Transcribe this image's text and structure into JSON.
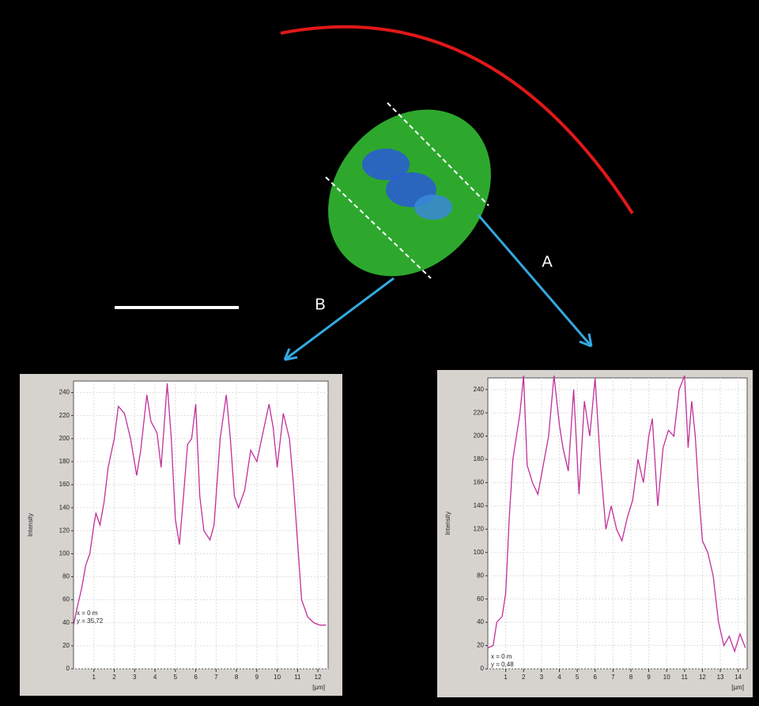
{
  "chart_data": [
    {
      "type": "line",
      "annotation": "B",
      "ylabel": "Intensity",
      "xlabel": "[µm]",
      "readout": [
        "x = 0 m",
        "y = 35,72"
      ],
      "x": [
        0,
        0.2,
        0.4,
        0.6,
        0.8,
        1.0,
        1.1,
        1.3,
        1.5,
        1.7,
        2.0,
        2.2,
        2.5,
        2.8,
        3.1,
        3.3,
        3.6,
        3.8,
        4.1,
        4.3,
        4.6,
        4.8,
        5.0,
        5.2,
        5.4,
        5.6,
        5.8,
        6.0,
        6.2,
        6.4,
        6.7,
        6.9,
        7.2,
        7.5,
        7.7,
        7.9,
        8.1,
        8.4,
        8.7,
        9.0,
        9.3,
        9.6,
        9.8,
        10.0,
        10.3,
        10.6,
        10.8,
        11.0,
        11.2,
        11.5,
        11.8,
        12.1,
        12.4
      ],
      "series": [
        {
          "color": "#c0309a",
          "values": [
            38,
            55,
            70,
            90,
            100,
            125,
            135,
            125,
            145,
            175,
            200,
            228,
            222,
            200,
            168,
            190,
            238,
            215,
            205,
            175,
            248,
            200,
            130,
            108,
            150,
            195,
            200,
            230,
            150,
            120,
            112,
            125,
            200,
            238,
            200,
            150,
            140,
            155,
            190,
            180,
            205,
            230,
            210,
            175,
            222,
            200,
            160,
            110,
            60,
            45,
            40,
            38,
            38
          ]
        }
      ],
      "xlim": [
        0,
        12.5
      ],
      "ylim": [
        0,
        250
      ],
      "xticks": [
        1,
        2,
        3,
        4,
        5,
        6,
        7,
        8,
        9,
        10,
        11,
        12
      ],
      "yticks": [
        0,
        20,
        40,
        60,
        80,
        100,
        120,
        140,
        160,
        180,
        200,
        220,
        240
      ],
      "grid": true
    },
    {
      "type": "line",
      "annotation": "A",
      "ylabel": "Intensity",
      "xlabel": "[µm]",
      "readout": [
        "x = 0 m",
        "y = 0,48"
      ],
      "x": [
        0,
        0.3,
        0.5,
        0.8,
        1.0,
        1.2,
        1.4,
        1.6,
        1.8,
        2.0,
        2.2,
        2.5,
        2.8,
        3.1,
        3.4,
        3.7,
        4.0,
        4.2,
        4.5,
        4.8,
        5.1,
        5.4,
        5.7,
        6.0,
        6.3,
        6.6,
        6.9,
        7.2,
        7.5,
        7.8,
        8.1,
        8.4,
        8.7,
        9.0,
        9.2,
        9.5,
        9.8,
        10.1,
        10.4,
        10.7,
        11.0,
        11.2,
        11.4,
        11.6,
        11.8,
        12.0,
        12.3,
        12.6,
        12.9,
        13.2,
        13.5,
        13.8,
        14.1,
        14.4
      ],
      "series": [
        {
          "color": "#c0309a",
          "values": [
            18,
            20,
            40,
            45,
            65,
            130,
            180,
            200,
            220,
            252,
            175,
            160,
            150,
            175,
            200,
            252,
            210,
            190,
            170,
            240,
            150,
            230,
            200,
            250,
            175,
            120,
            140,
            120,
            110,
            130,
            145,
            180,
            160,
            200,
            215,
            140,
            190,
            205,
            200,
            240,
            252,
            190,
            230,
            200,
            150,
            110,
            100,
            80,
            40,
            20,
            28,
            15,
            30,
            18
          ]
        }
      ],
      "xlim": [
        0,
        14.5
      ],
      "ylim": [
        0,
        250
      ],
      "xticks": [
        1,
        2,
        3,
        4,
        5,
        6,
        7,
        8,
        9,
        10,
        11,
        12,
        13,
        14
      ],
      "yticks": [
        0,
        20,
        40,
        60,
        80,
        100,
        120,
        140,
        160,
        180,
        200,
        220,
        240
      ],
      "grid": true
    }
  ]
}
